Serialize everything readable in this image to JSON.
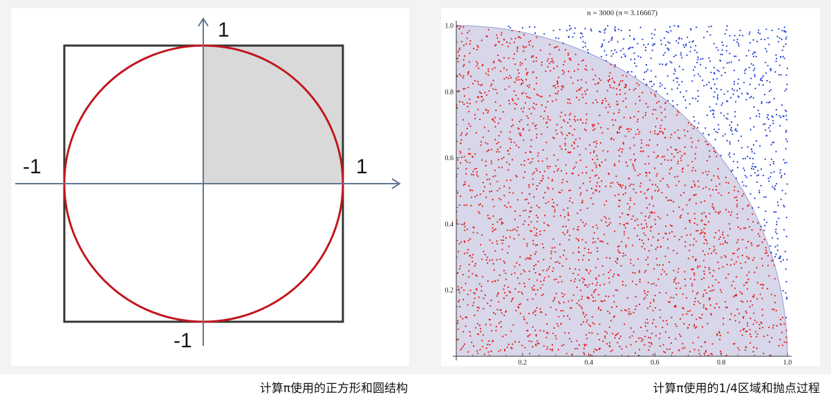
{
  "diagram": {
    "labels": {
      "top": "1",
      "left": "-1",
      "right": "1",
      "bottom": "-1"
    },
    "colors": {
      "square": "#363636",
      "circle": "#c1161d",
      "axes": "#5f7591",
      "shaded_quadrant": "#d9d9d9",
      "labels": "#111111"
    }
  },
  "chart_data": {
    "type": "scatter",
    "title": "n = 3000 (π ≈ 3.16667)",
    "n": 3000,
    "pi_estimate": 3.16667,
    "xlim": [
      0,
      1
    ],
    "ylim": [
      0,
      1
    ],
    "x_tick_labels": [
      "0.2",
      "0.4",
      "0.6",
      "0.8",
      "1.0"
    ],
    "y_tick_labels": [
      "0.2",
      "0.4",
      "0.6",
      "0.8",
      "1.0"
    ],
    "grid": false,
    "colors": {
      "inside_points": "#e31a1c",
      "outside_points": "#1f3bd1",
      "quarter_circle_fill": "#d7d7e9",
      "quarter_circle_edge": "#9a9ad0",
      "axes": "#333333"
    }
  },
  "captions": {
    "left": "计算π使用的正方形和圆结构",
    "right": "计算π使用的1/4区域和抛点过程"
  }
}
